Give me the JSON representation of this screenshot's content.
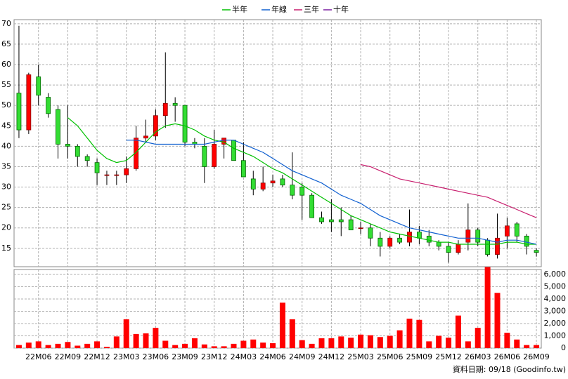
{
  "chart_data": [
    {
      "type": "candlestick",
      "ylim": [
        10.5,
        71
      ],
      "yticks": [
        15,
        20,
        25,
        30,
        35,
        40,
        45,
        50,
        55,
        60,
        65,
        70
      ],
      "grid": true,
      "up_color": "#ff0000",
      "down_color": "#33dd33",
      "legend": "top",
      "open": [
        53,
        44,
        57,
        52,
        49,
        40.5,
        40,
        37.5,
        36,
        33,
        33,
        33,
        34.5,
        42,
        42.5,
        47.5,
        50.5,
        50,
        41,
        40,
        35,
        40.5,
        41.5,
        36.5,
        32,
        29.5,
        31,
        32,
        30.5,
        30,
        28,
        22.5,
        22,
        22,
        22,
        20,
        20,
        17.5,
        15.5,
        17.5,
        16.5,
        19,
        18,
        16.5,
        15.5,
        14,
        16.5,
        19.5,
        17,
        13.5,
        18,
        21,
        18,
        14.5
      ],
      "high": [
        69.5,
        58,
        60,
        53,
        50,
        50,
        40.5,
        38,
        37,
        34,
        34,
        37.5,
        45,
        46.5,
        49,
        63,
        52,
        50,
        42,
        42,
        44,
        42,
        41.5,
        41,
        34,
        35,
        33,
        33,
        38.5,
        31,
        28.5,
        24,
        27,
        25,
        23,
        21.5,
        21,
        19,
        18,
        18.5,
        24.5,
        20.5,
        19.5,
        17,
        16.5,
        17,
        26,
        20,
        17.5,
        23.5,
        22.5,
        21.5,
        18.5,
        15
      ],
      "low": [
        42,
        43,
        50,
        47,
        37,
        37,
        35,
        35,
        30.5,
        30.5,
        30.5,
        31,
        34,
        41,
        41.5,
        44.5,
        46,
        40,
        39.5,
        31,
        34.5,
        37,
        37,
        33,
        28,
        29,
        30,
        30,
        27,
        22,
        22.5,
        21,
        19,
        18,
        19.5,
        18.5,
        15.5,
        13,
        15,
        16,
        15.5,
        16,
        15.5,
        14.5,
        11.5,
        13.5,
        14.5,
        15.5,
        13,
        12.5,
        15,
        16.5,
        13.5,
        13
      ],
      "close": [
        44,
        57.5,
        52.5,
        48,
        40.5,
        40,
        37.5,
        36.5,
        33.5,
        33,
        33,
        34.5,
        42,
        42.5,
        47.5,
        50.5,
        50,
        41,
        40.5,
        35,
        40.5,
        42,
        36.5,
        32.5,
        29.5,
        31,
        31.5,
        30.5,
        28,
        28,
        22.5,
        21.5,
        21.5,
        21.5,
        19.5,
        20,
        17.5,
        15.5,
        17.5,
        16.5,
        19,
        17.5,
        16.5,
        15.5,
        14,
        16,
        19.5,
        16.5,
        13.5,
        17.5,
        20.5,
        18,
        15.5,
        14
      ],
      "series": [
        {
          "name": "半年",
          "color": "#00c000",
          "values": [
            null,
            null,
            null,
            null,
            null,
            47,
            45,
            42,
            39,
            37,
            36,
            36.5,
            38.5,
            41,
            43.5,
            45,
            45.5,
            45,
            44,
            42.5,
            41.5,
            41,
            39.5,
            38.5,
            37.5,
            36,
            34.5,
            33.5,
            32,
            30.5,
            29,
            27.5,
            26,
            24.5,
            23,
            22,
            21,
            20,
            19,
            18.5,
            18,
            17.5,
            17,
            16.5,
            16.5,
            16,
            16,
            16,
            16,
            16,
            16.5,
            16.5,
            16,
            16
          ]
        },
        {
          "name": "年線",
          "color": "#1060d0",
          "values": [
            null,
            null,
            null,
            null,
            null,
            null,
            null,
            null,
            null,
            null,
            null,
            41.5,
            41.5,
            41,
            40.5,
            40.5,
            40.5,
            40.5,
            40.5,
            40.5,
            41,
            41.5,
            41.5,
            40.5,
            39.5,
            38.5,
            37,
            35.5,
            34,
            33,
            32,
            31,
            29.5,
            28,
            27,
            26,
            24.5,
            23,
            22,
            21,
            20,
            19.5,
            19,
            18.5,
            18,
            17.5,
            17.5,
            17.5,
            17,
            16.5,
            17,
            17,
            16.5,
            16
          ]
        },
        {
          "name": "三年",
          "color": "#c81e6e",
          "values": [
            null,
            null,
            null,
            null,
            null,
            null,
            null,
            null,
            null,
            null,
            null,
            null,
            null,
            null,
            null,
            null,
            null,
            null,
            null,
            null,
            null,
            null,
            null,
            null,
            null,
            null,
            null,
            null,
            null,
            null,
            null,
            null,
            null,
            null,
            null,
            35.5,
            35,
            34,
            33,
            32,
            31.5,
            31,
            30.5,
            30,
            29.5,
            29,
            28.5,
            28,
            27.5,
            26.5,
            25.5,
            24.5,
            23.5,
            22.5
          ]
        },
        {
          "name": "十年",
          "color": "#7a1fa0",
          "values": [
            null,
            null,
            null,
            null,
            null,
            null,
            null,
            null,
            null,
            null,
            null,
            null,
            null,
            null,
            null,
            null,
            null,
            null,
            null,
            null,
            null,
            null,
            null,
            null,
            null,
            null,
            null,
            null,
            null,
            null,
            null,
            null,
            null,
            null,
            null,
            null,
            null,
            null,
            null,
            null,
            null,
            null,
            null,
            null,
            null,
            null,
            null,
            null,
            null,
            null,
            null,
            null,
            null,
            null
          ]
        }
      ]
    },
    {
      "type": "bar",
      "color": "#ff0000",
      "ylim": [
        0,
        6400
      ],
      "grid": true,
      "yticks": [
        0,
        {
          "value": 1000,
          "label": "1,000"
        },
        {
          "value": 2000,
          "label": "2,000"
        },
        {
          "value": 3000,
          "label": "3,000"
        },
        {
          "value": 4000,
          "label": "4,000"
        },
        {
          "value": 5000,
          "label": "5,000"
        },
        {
          "value": 6000,
          "label": "6,000"
        }
      ],
      "categories": [
        null,
        null,
        "22M06",
        null,
        null,
        "22M09",
        null,
        null,
        "22M12",
        null,
        null,
        "23M03",
        null,
        null,
        "23M06",
        null,
        null,
        "23M09",
        null,
        null,
        "23M12",
        null,
        null,
        "24M03",
        null,
        null,
        "24M06",
        null,
        null,
        "24M09",
        null,
        null,
        "24M12",
        null,
        null,
        "25M03",
        null,
        null,
        "25M06",
        null,
        null,
        "25M09",
        null,
        null,
        "25M12",
        null,
        null,
        "26M03",
        null,
        null,
        "26M06",
        null,
        null,
        "26M09"
      ],
      "values": [
        250,
        450,
        550,
        250,
        350,
        500,
        200,
        350,
        550,
        100,
        950,
        2350,
        1150,
        1200,
        1650,
        600,
        250,
        350,
        800,
        300,
        150,
        150,
        350,
        600,
        700,
        450,
        400,
        3700,
        2350,
        650,
        350,
        800,
        800,
        950,
        850,
        1100,
        1050,
        900,
        1000,
        1450,
        2400,
        2300,
        550,
        1000,
        850,
        2650,
        550,
        1650,
        6600,
        4500,
        1250,
        700,
        250,
        250
      ]
    }
  ],
  "footer": "資料日期: 09/18 (Goodinfo.tw)"
}
